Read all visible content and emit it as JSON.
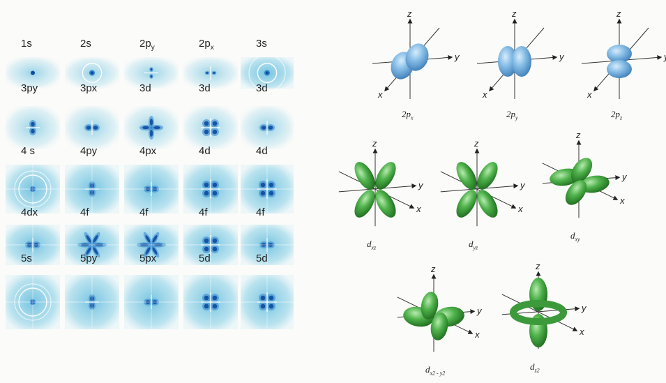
{
  "grid": {
    "rows": [
      [
        {
          "main": "1s",
          "sub": "",
          "pattern": "dot"
        },
        {
          "main": "2s",
          "sub": "",
          "pattern": "ring"
        },
        {
          "main": "2p",
          "sub": "y",
          "pattern": "pv"
        },
        {
          "main": "2p",
          "sub": "x",
          "pattern": "ph"
        },
        {
          "main": "3s",
          "sub": "",
          "pattern": "ring2"
        }
      ],
      [
        {
          "main": "3py",
          "sub": "",
          "pattern": "pv"
        },
        {
          "main": "3px",
          "sub": "",
          "pattern": "ph"
        },
        {
          "main": "3d",
          "sub": "",
          "pattern": "dx"
        },
        {
          "main": "3d",
          "sub": "",
          "pattern": "dplus"
        },
        {
          "main": "3d",
          "sub": "",
          "pattern": "ph"
        }
      ],
      [
        {
          "main": "4 s",
          "sub": "",
          "pattern": "ring2"
        },
        {
          "main": "4py",
          "sub": "",
          "pattern": "pv"
        },
        {
          "main": "4px",
          "sub": "",
          "pattern": "ph"
        },
        {
          "main": "4d",
          "sub": "",
          "pattern": "dplus"
        },
        {
          "main": "4d",
          "sub": "",
          "pattern": "dplus"
        }
      ],
      [
        {
          "main": "4dx",
          "sub": "",
          "pattern": "ph"
        },
        {
          "main": "4f",
          "sub": "",
          "pattern": "f6"
        },
        {
          "main": "4f",
          "sub": "",
          "pattern": "f6"
        },
        {
          "main": "4f",
          "sub": "",
          "pattern": "dplus"
        },
        {
          "main": "4f",
          "sub": "",
          "pattern": "ph"
        }
      ],
      [
        {
          "main": "5s",
          "sub": "",
          "pattern": "ring2"
        },
        {
          "main": "5py",
          "sub": "",
          "pattern": "pv"
        },
        {
          "main": "5px",
          "sub": "",
          "pattern": "ph"
        },
        {
          "main": "5d",
          "sub": "",
          "pattern": "dplus"
        },
        {
          "main": "5d",
          "sub": "",
          "pattern": "dplus"
        }
      ]
    ]
  },
  "axes": {
    "x": "x",
    "y": "y",
    "z": "z"
  },
  "p_orbitals": [
    {
      "main": "2p",
      "sub": "x",
      "orient": "x"
    },
    {
      "main": "2p",
      "sub": "y",
      "orient": "y"
    },
    {
      "main": "2p",
      "sub": "z",
      "orient": "z"
    }
  ],
  "d_orbitals": [
    {
      "main": "d",
      "sub": "xz",
      "orient": "xz"
    },
    {
      "main": "d",
      "sub": "yz",
      "orient": "yz"
    },
    {
      "main": "d",
      "sub": "xy",
      "orient": "xy"
    },
    {
      "main": "d",
      "sub": "x2 - y2",
      "orient": "x2y2"
    },
    {
      "main": "d",
      "sub": "z2",
      "orient": "z2"
    }
  ],
  "colors": {
    "blue_orbital": "#7fb8e3",
    "green_orbital": "#4db04a",
    "density_dark": "#0f4fa6",
    "density_light": "#bfe3ef"
  }
}
